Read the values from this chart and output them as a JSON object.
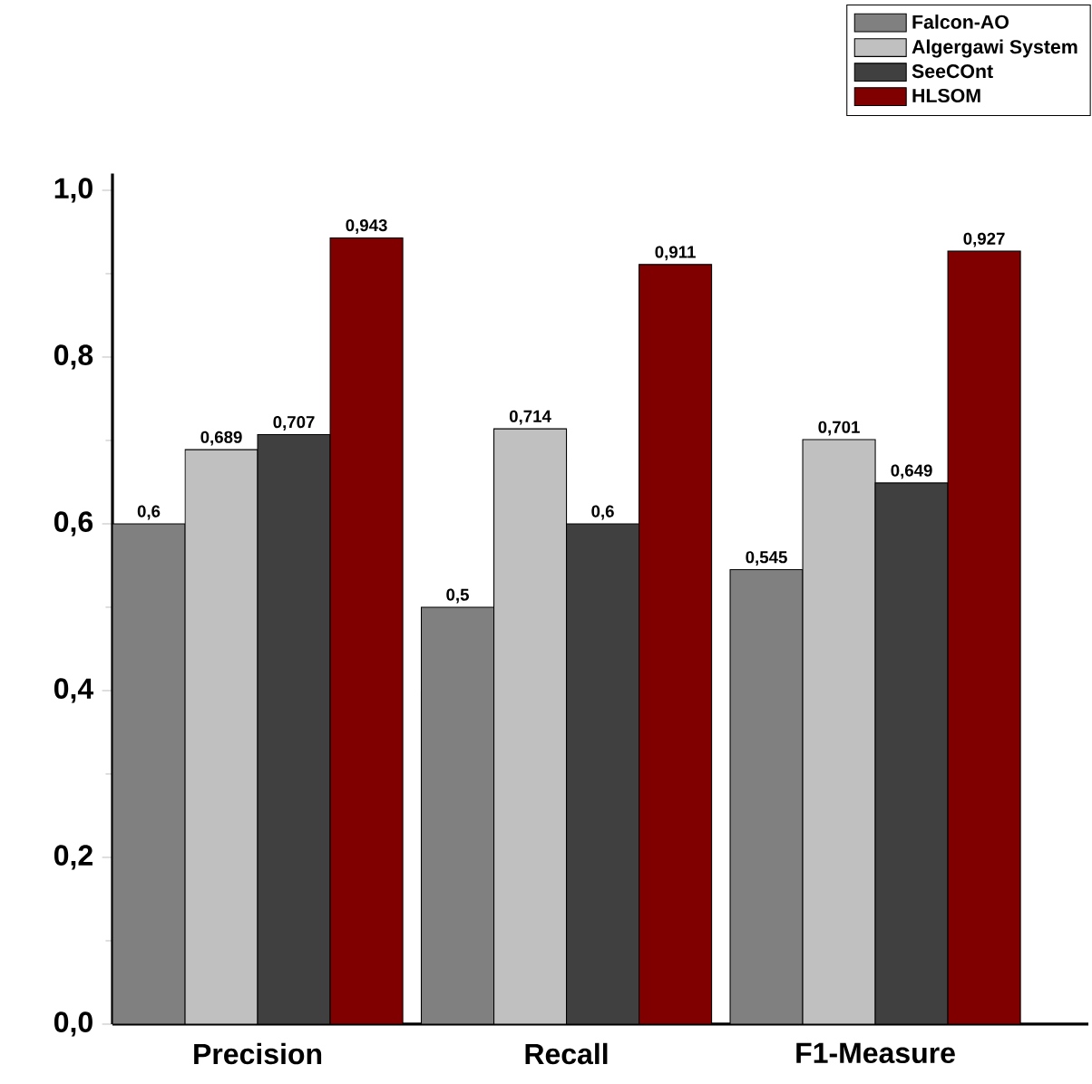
{
  "chart_data": {
    "type": "bar",
    "categories": [
      "Precision",
      "Recall",
      "F1-Measure"
    ],
    "series": [
      {
        "name": "Falcon-AO",
        "color": "#808080",
        "values": [
          0.6,
          0.5,
          0.545
        ],
        "value_labels": [
          "0,6",
          "0,5",
          "0,545"
        ]
      },
      {
        "name": "Algergawi System",
        "color": "#c0c0c0",
        "values": [
          0.689,
          0.714,
          0.701
        ],
        "value_labels": [
          "0,689",
          "0,714",
          "0,701"
        ]
      },
      {
        "name": "SeeCOnt",
        "color": "#404040",
        "values": [
          0.707,
          0.6,
          0.649
        ],
        "value_labels": [
          "0,707",
          "0,6",
          "0,649"
        ]
      },
      {
        "name": "HLSOM",
        "color": "#800000",
        "values": [
          0.943,
          0.911,
          0.927
        ],
        "value_labels": [
          "0,943",
          "0,911",
          "0,927"
        ]
      }
    ],
    "ylim": [
      0,
      1.02
    ],
    "yticks": [
      {
        "value": 0,
        "label": "0,0"
      },
      {
        "value": 0.2,
        "label": "0,2"
      },
      {
        "value": 0.4,
        "label": "0,4"
      },
      {
        "value": 0.6,
        "label": "0,6"
      },
      {
        "value": 0.8,
        "label": "0,8"
      },
      {
        "value": 1.0,
        "label": "1,0"
      }
    ],
    "grid": false,
    "legend": "top right"
  }
}
